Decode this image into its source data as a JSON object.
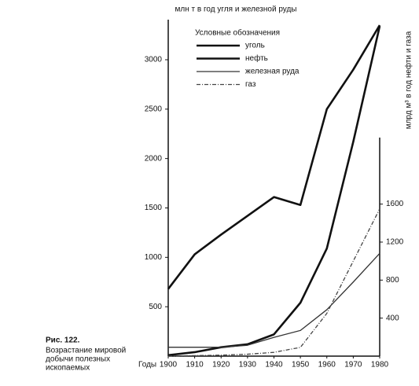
{
  "chart_data": {
    "type": "line",
    "title": "млн т в год угля и железной руды",
    "y2_label": "млрд м³ в год нефти и газа",
    "x_label": "Годы",
    "legend_title": "Условные обозначения",
    "caption_number": "Рис. 122.",
    "caption": [
      "Возрастание мировой",
      "добычи полезных",
      "ископаемых"
    ],
    "x": [
      1900,
      1910,
      1920,
      1930,
      1940,
      1950,
      1960,
      1970,
      1980
    ],
    "xlim": [
      1900,
      1980
    ],
    "xticks": [
      1900,
      1910,
      1920,
      1930,
      1940,
      1950,
      1960,
      1970,
      1980
    ],
    "ylim": [
      0,
      3350
    ],
    "yticks": [
      500,
      1000,
      1500,
      2000,
      2500,
      3000
    ],
    "y2lim": [
      0,
      2300
    ],
    "y2ticks": [
      400,
      800,
      1200,
      1600
    ],
    "series": [
      {
        "name": "уголь",
        "color": "#111111",
        "line_style": "thick",
        "values": [
          680,
          1030,
          1230,
          1420,
          1610,
          1530,
          2500,
          2900,
          3350
        ]
      },
      {
        "name": "нефть",
        "color": "#111111",
        "line_style": "thick",
        "values": [
          10,
          40,
          90,
          120,
          220,
          540,
          1090,
          2170,
          3340
        ]
      },
      {
        "name": "железная руда",
        "color": "#333333",
        "line_style": "thin",
        "values": [
          90,
          90,
          90,
          110,
          190,
          260,
          470,
          750,
          1040
        ]
      },
      {
        "name": "газ",
        "color": "#444444",
        "line_style": "dashed",
        "axis": "y2",
        "values": [
          0,
          5,
          10,
          20,
          40,
          92,
          450,
          1000,
          1550
        ]
      }
    ]
  }
}
